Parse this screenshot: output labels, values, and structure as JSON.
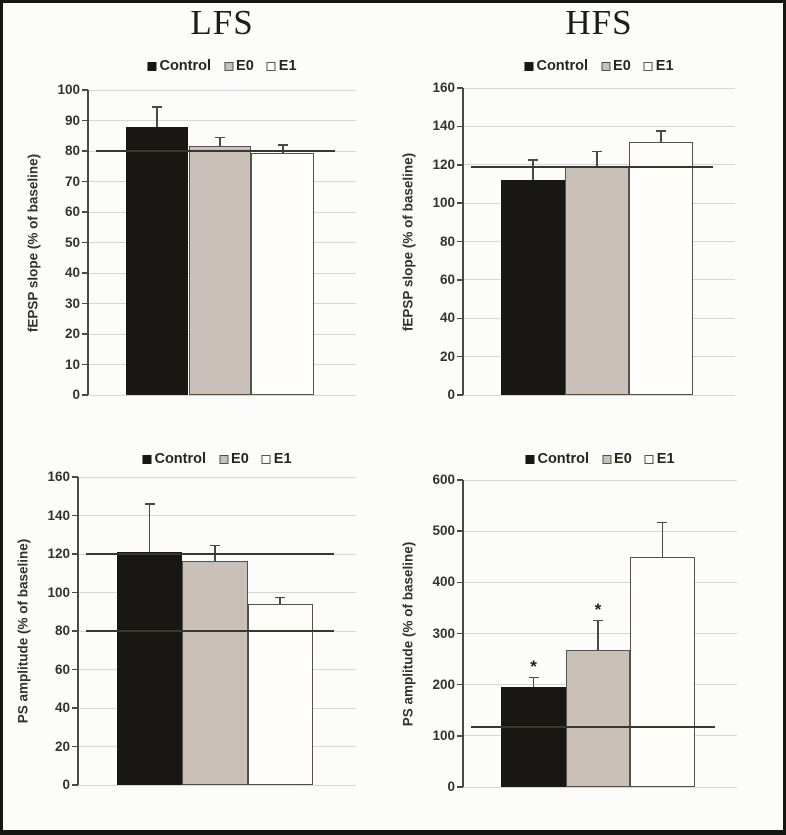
{
  "series_styles": [
    {
      "name": "Control",
      "fill": "#181713",
      "border": "#181713"
    },
    {
      "name": "E0",
      "fill": "#c8c0b9",
      "border": "#55524c"
    },
    {
      "name": "E1",
      "fill": "#fffefb",
      "border": "#55524c"
    }
  ],
  "chart_data": [
    {
      "type": "bar",
      "panel": "top-left",
      "column_title": "LFS",
      "ylabel": "fEPSP slope (% of baseline)",
      "ylim": [
        0,
        100
      ],
      "ytick_step": 10,
      "grid": true,
      "legend_position": "top",
      "legend_entries": [
        "Control",
        "E0",
        "E1"
      ],
      "categories": [
        "Control",
        "E0",
        "E1"
      ],
      "values": [
        88,
        81.5,
        79.5
      ],
      "errors_up": [
        6.5,
        3,
        2.5
      ],
      "sig_markers": [
        "",
        "",
        ""
      ],
      "ref_lines": [
        80
      ]
    },
    {
      "type": "bar",
      "panel": "top-right",
      "column_title": "HFS",
      "ylabel": "fEPSP slope (% of baseline)",
      "ylim": [
        0,
        160
      ],
      "ytick_step": 20,
      "grid": true,
      "legend_position": "top",
      "legend_entries": [
        "Control",
        "E0",
        "E1"
      ],
      "categories": [
        "Control",
        "E0",
        "E1"
      ],
      "values": [
        112,
        119,
        132
      ],
      "errors_up": [
        10.5,
        8,
        5.5
      ],
      "sig_markers": [
        "",
        "",
        ""
      ],
      "ref_lines": [
        119
      ]
    },
    {
      "type": "bar",
      "panel": "bottom-left",
      "column_title": "",
      "ylabel": "PS amplitude (% of baseline)",
      "ylim": [
        0,
        160
      ],
      "ytick_step": 20,
      "grid": true,
      "legend_position": "top",
      "legend_entries": [
        "Control",
        "E0",
        "E1"
      ],
      "categories": [
        "Control",
        "E0",
        "E1"
      ],
      "values": [
        121,
        116.5,
        94
      ],
      "errors_up": [
        25,
        8,
        3.5
      ],
      "sig_markers": [
        "",
        "",
        ""
      ],
      "ref_lines": [
        120,
        80
      ]
    },
    {
      "type": "bar",
      "panel": "bottom-right",
      "column_title": "",
      "ylabel": "PS amplitude (% of baseline)",
      "ylim": [
        0,
        600
      ],
      "ytick_step": 100,
      "grid": true,
      "legend_position": "top",
      "legend_entries": [
        "Control",
        "E0",
        "E1"
      ],
      "categories": [
        "Control",
        "E0",
        "E1"
      ],
      "values": [
        195,
        267,
        449
      ],
      "errors_up": [
        19,
        58,
        68
      ],
      "sig_markers": [
        "*",
        "*",
        ""
      ],
      "ref_lines": [
        117
      ]
    }
  ]
}
